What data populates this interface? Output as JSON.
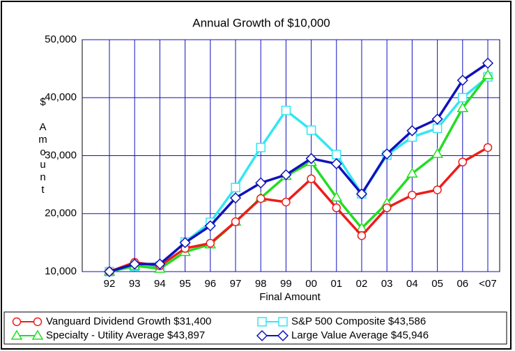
{
  "chart_data": {
    "type": "line",
    "title": "Annual Growth of $10,000",
    "y_label": "$ Amount",
    "x_label": "Final Amount",
    "categories": [
      "92",
      "93",
      "94",
      "95",
      "96",
      "97",
      "98",
      "99",
      "00",
      "01",
      "02",
      "03",
      "04",
      "05",
      "06",
      "<07"
    ],
    "ylim": [
      10000,
      50000
    ],
    "yticks": [
      {
        "value": 10000,
        "label": "10,000"
      },
      {
        "value": 20000,
        "label": "20,000"
      },
      {
        "value": 30000,
        "label": "30,000"
      },
      {
        "value": 40000,
        "label": "40,000"
      },
      {
        "value": 50000,
        "label": "50,000"
      }
    ],
    "grid": true,
    "series": [
      {
        "name": "S&P 500 Composite $43,586",
        "color": "#33e6f2",
        "marker": "square",
        "values": [
          10000,
          10900,
          11000,
          15100,
          18500,
          24500,
          31400,
          37800,
          34400,
          30200,
          23400,
          30100,
          33200,
          34700,
          40000,
          43586
        ]
      },
      {
        "name": "Specialty - Utility Average $43,897",
        "color": "#22dd22",
        "marker": "triangle",
        "values": [
          10000,
          11000,
          10500,
          13400,
          14700,
          18600,
          22700,
          26500,
          28900,
          22800,
          17500,
          21800,
          26900,
          30300,
          38200,
          43897
        ]
      },
      {
        "name": "Vanguard Dividend Growth $31,400",
        "color": "#ee1c1c",
        "marker": "circle",
        "values": [
          10000,
          11600,
          11000,
          14000,
          14900,
          18600,
          22600,
          22000,
          26000,
          21000,
          16200,
          21000,
          23200,
          24100,
          28900,
          31400
        ]
      },
      {
        "name": "Large Value Average $45,946",
        "color": "#1111bb",
        "marker": "diamond",
        "values": [
          10000,
          11300,
          11300,
          15000,
          17900,
          22700,
          25300,
          26700,
          29500,
          28600,
          23400,
          30300,
          34300,
          36300,
          43000,
          45946
        ]
      }
    ]
  }
}
